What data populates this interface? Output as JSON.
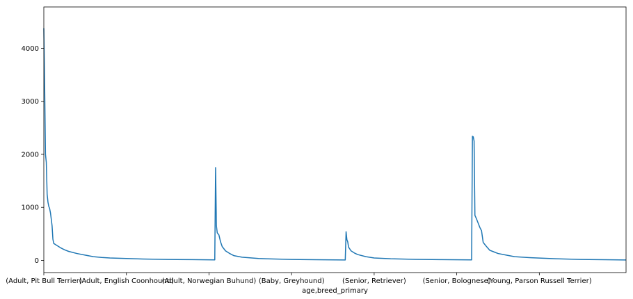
{
  "chart_data": {
    "type": "line",
    "xlabel": "age,breed_primary",
    "ylabel": "",
    "ylim": [
      -230,
      4780
    ],
    "grid": false,
    "legend": "none",
    "y_ticks": [
      0,
      1000,
      2000,
      3000,
      4000
    ],
    "x_ticks": [
      {
        "index": 0,
        "label": "(Adult, Pit Bull Terrier)"
      },
      {
        "index": 100,
        "label": "(Adult, English Coonhound)"
      },
      {
        "index": 200,
        "label": "(Adult, Norwegian Buhund)"
      },
      {
        "index": 300,
        "label": "(Baby, Greyhound)"
      },
      {
        "index": 400,
        "label": "(Senior, Retriever)"
      },
      {
        "index": 500,
        "label": "(Senior, Bolognese)"
      },
      {
        "index": 600,
        "label": "(Young, Parson Russell Terrier)"
      }
    ],
    "xlim": [
      0,
      705
    ],
    "series": [
      {
        "color": "#1f77b4",
        "points": [
          [
            0,
            4380
          ],
          [
            1,
            3300
          ],
          [
            2,
            2000
          ],
          [
            3,
            1850
          ],
          [
            4,
            1250
          ],
          [
            5,
            1100
          ],
          [
            6,
            1020
          ],
          [
            7,
            980
          ],
          [
            8,
            900
          ],
          [
            9,
            780
          ],
          [
            10,
            650
          ],
          [
            11,
            400
          ],
          [
            12,
            320
          ],
          [
            14,
            300
          ],
          [
            16,
            280
          ],
          [
            18,
            260
          ],
          [
            20,
            240
          ],
          [
            25,
            200
          ],
          [
            30,
            170
          ],
          [
            40,
            130
          ],
          [
            50,
            100
          ],
          [
            60,
            70
          ],
          [
            70,
            55
          ],
          [
            80,
            45
          ],
          [
            100,
            35
          ],
          [
            120,
            25
          ],
          [
            150,
            18
          ],
          [
            180,
            14
          ],
          [
            207,
            10
          ],
          [
            208,
            1750
          ],
          [
            209,
            650
          ],
          [
            210,
            520
          ],
          [
            212,
            480
          ],
          [
            214,
            350
          ],
          [
            216,
            260
          ],
          [
            220,
            180
          ],
          [
            225,
            130
          ],
          [
            230,
            90
          ],
          [
            240,
            60
          ],
          [
            260,
            35
          ],
          [
            280,
            25
          ],
          [
            300,
            18
          ],
          [
            330,
            12
          ],
          [
            365,
            8
          ],
          [
            366,
            540
          ],
          [
            367,
            390
          ],
          [
            368,
            350
          ],
          [
            369,
            250
          ],
          [
            372,
            180
          ],
          [
            376,
            140
          ],
          [
            380,
            110
          ],
          [
            390,
            70
          ],
          [
            400,
            45
          ],
          [
            420,
            30
          ],
          [
            450,
            20
          ],
          [
            480,
            14
          ],
          [
            518,
            9
          ],
          [
            519,
            2340
          ],
          [
            520,
            2330
          ],
          [
            521,
            2250
          ],
          [
            522,
            850
          ],
          [
            524,
            780
          ],
          [
            526,
            700
          ],
          [
            528,
            620
          ],
          [
            530,
            560
          ],
          [
            532,
            340
          ],
          [
            535,
            280
          ],
          [
            540,
            190
          ],
          [
            545,
            160
          ],
          [
            550,
            130
          ],
          [
            560,
            100
          ],
          [
            570,
            70
          ],
          [
            590,
            50
          ],
          [
            620,
            30
          ],
          [
            650,
            18
          ],
          [
            680,
            12
          ],
          [
            705,
            8
          ]
        ]
      }
    ]
  }
}
